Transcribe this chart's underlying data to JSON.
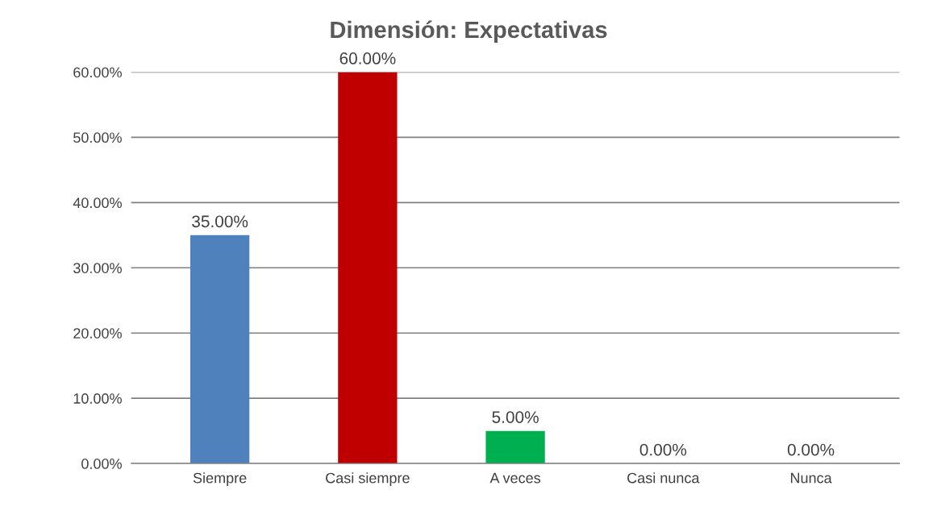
{
  "chart_data": {
    "type": "bar",
    "title": "Dimensión: Expectativas",
    "categories": [
      "Siempre",
      "Casi siempre",
      "A veces",
      "Casi nunca",
      "Nunca"
    ],
    "values": [
      35,
      60,
      5,
      0,
      0
    ],
    "colors": [
      "#4f81bd",
      "#c00000",
      "#00b050",
      "#4f81bd",
      "#4f81bd"
    ],
    "value_labels": [
      "35.00%",
      "60.00%",
      "5.00%",
      "0.00%",
      "0.00%"
    ],
    "ylim": [
      0,
      60
    ],
    "yticks": [
      {
        "value": 0,
        "label": "0.00%"
      },
      {
        "value": 10,
        "label": "10.00%"
      },
      {
        "value": 20,
        "label": "20.00%"
      },
      {
        "value": 30,
        "label": "30.00%"
      },
      {
        "value": 40,
        "label": "40.00%"
      },
      {
        "value": 50,
        "label": "50.00%"
      },
      {
        "value": 60,
        "label": "60.00%"
      }
    ],
    "grid": "y",
    "legend": false
  }
}
